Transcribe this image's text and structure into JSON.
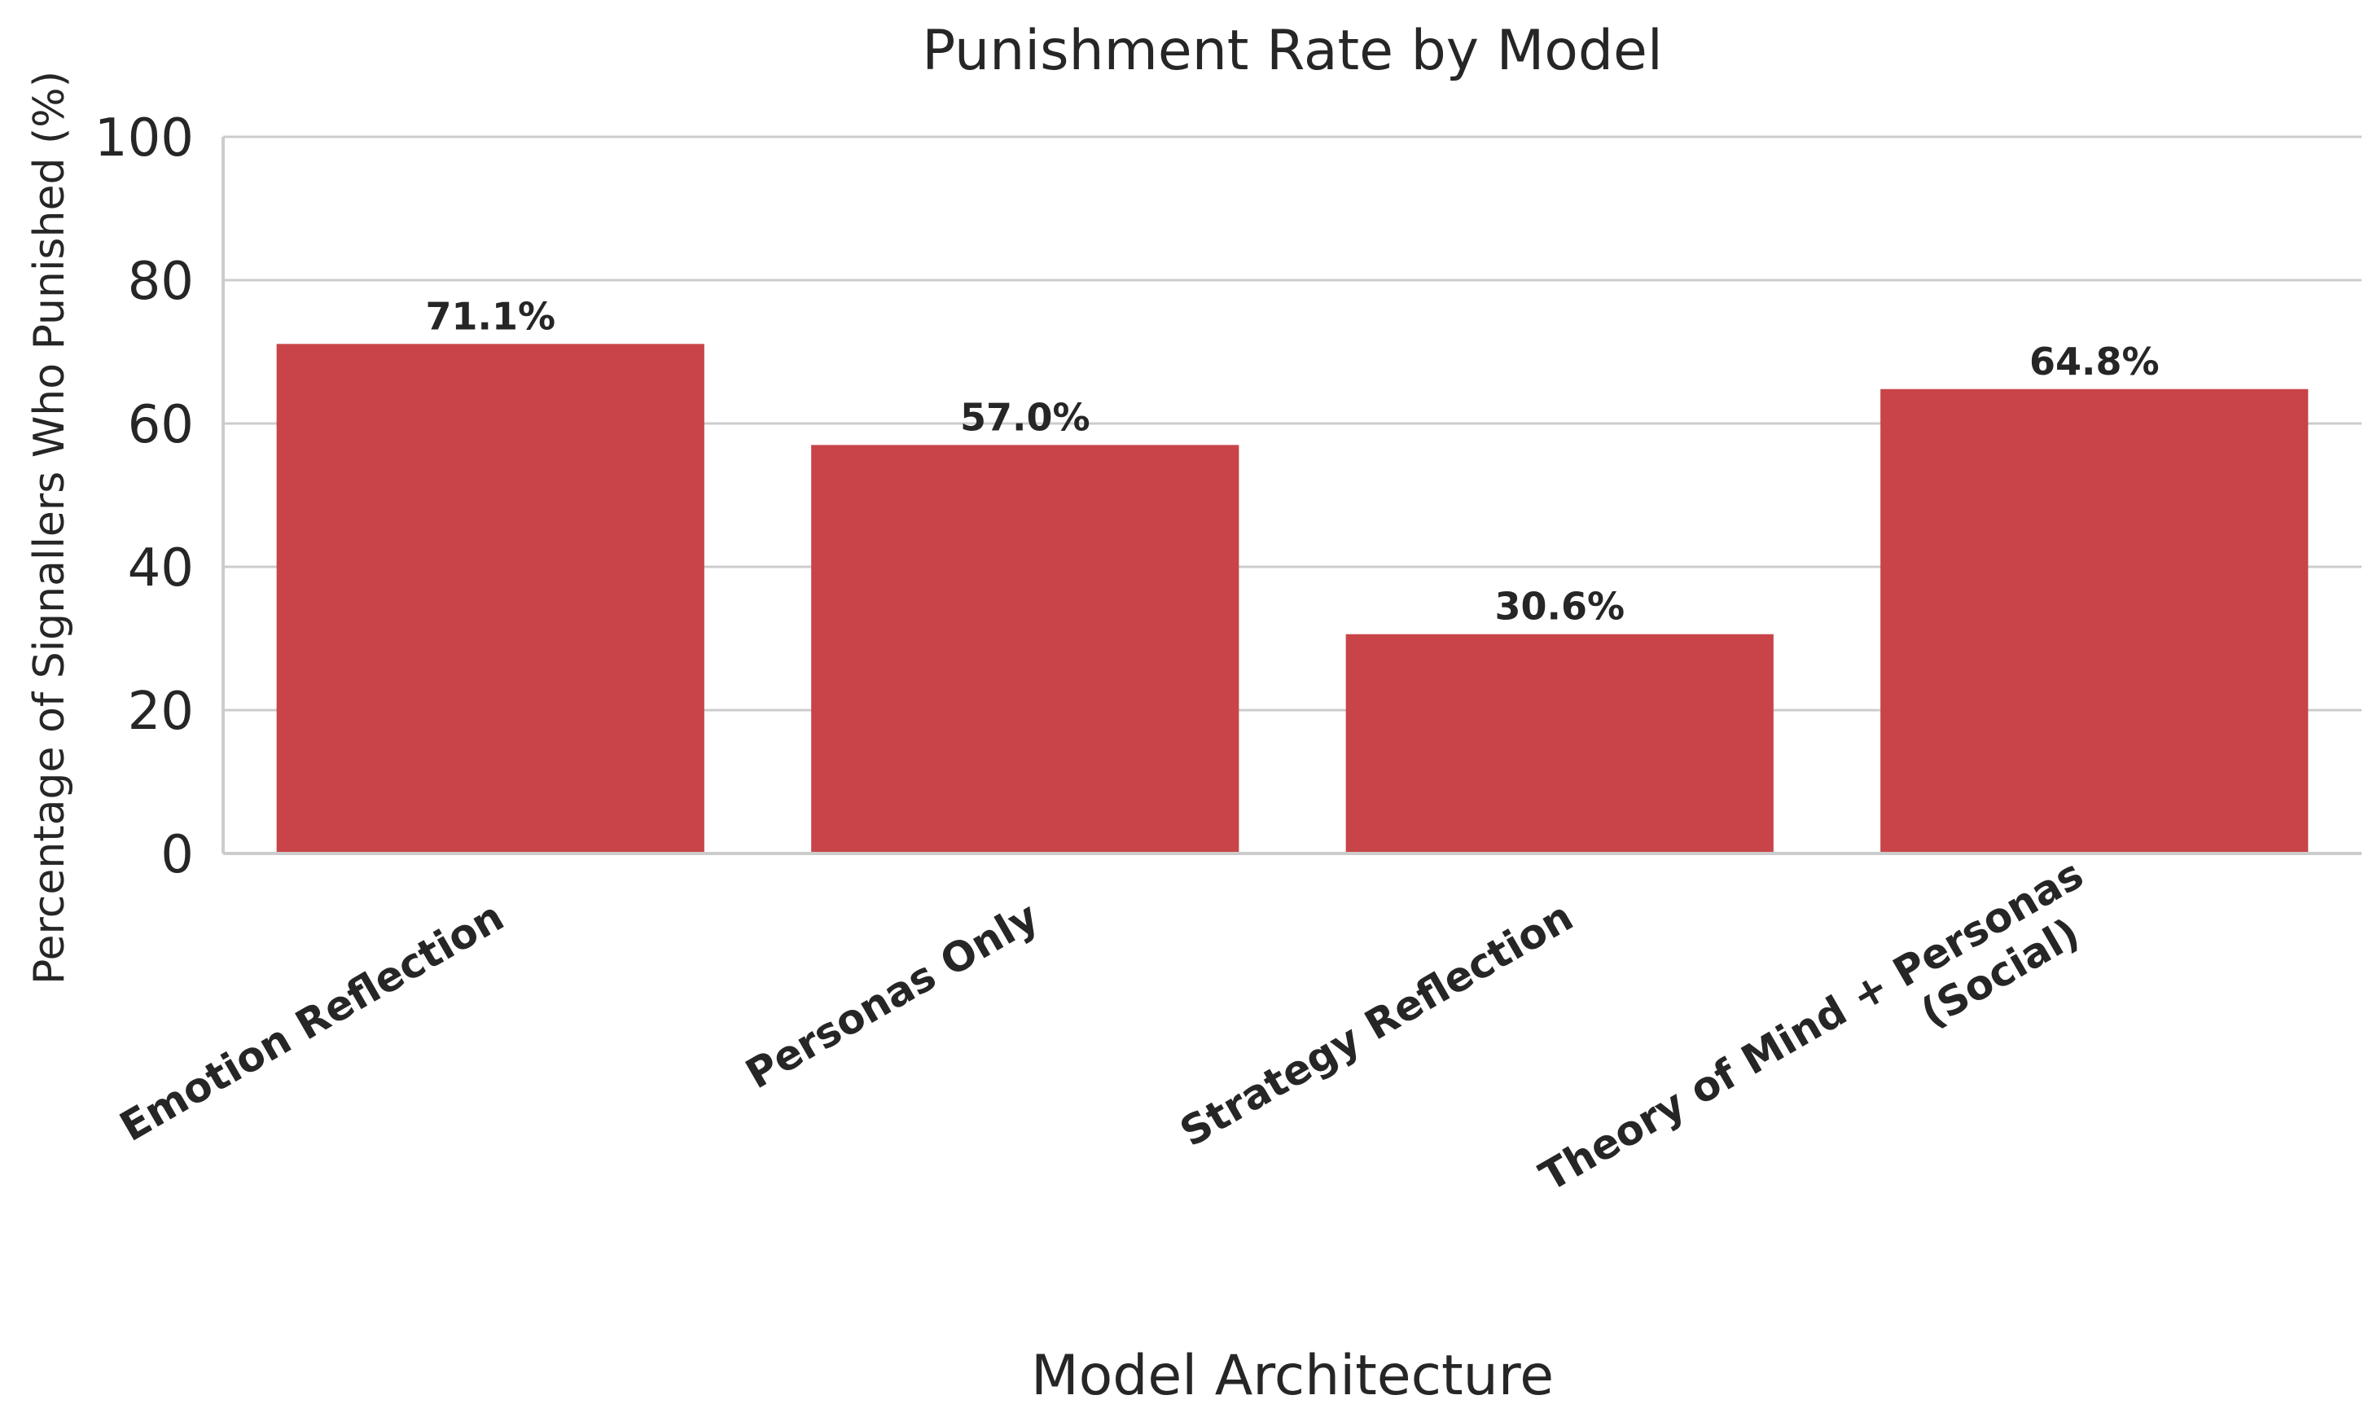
{
  "chart_data": {
    "type": "bar",
    "title": "Punishment Rate by Model",
    "xlabel": "Model Architecture",
    "ylabel": "Percentage of Signallers Who Punished (%)",
    "ylim": [
      0,
      100
    ],
    "yticks": [
      0,
      20,
      40,
      60,
      80,
      100
    ],
    "categories": [
      [
        "Emotion Reflection"
      ],
      [
        "Personas Only"
      ],
      [
        "Strategy Reflection"
      ],
      [
        "Theory of Mind + Personas",
        "(Social)"
      ]
    ],
    "values": [
      71.1,
      57.0,
      30.6,
      64.8
    ],
    "data_labels": [
      "71.1%",
      "57.0%",
      "30.6%",
      "64.8%"
    ],
    "bar_color": "#c84448",
    "grid": true
  }
}
